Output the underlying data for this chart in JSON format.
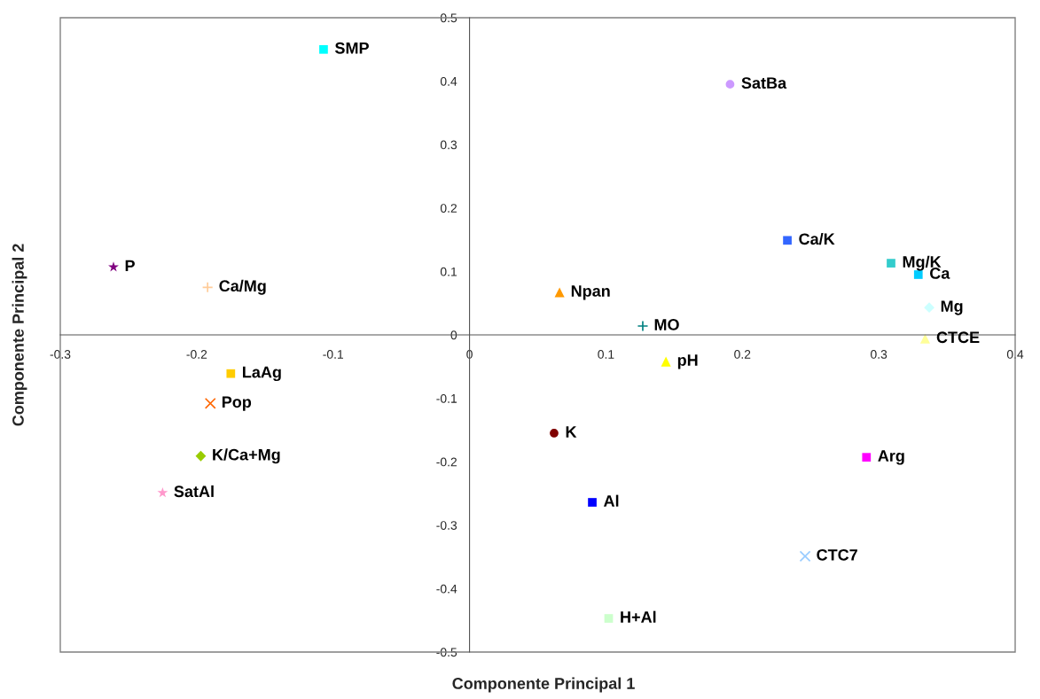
{
  "chart_data": {
    "type": "scatter",
    "xlabel": "Componente Principal 1",
    "ylabel": "Componente Principal 2",
    "xlim": [
      -0.3,
      0.4
    ],
    "ylim": [
      -0.5,
      0.5
    ],
    "xticks": [
      -0.3,
      -0.2,
      -0.1,
      0,
      0.1,
      0.2,
      0.3,
      0.4
    ],
    "yticks": [
      -0.5,
      -0.4,
      -0.3,
      -0.2,
      -0.1,
      0,
      0.1,
      0.2,
      0.3,
      0.4,
      0.5
    ],
    "grid": false,
    "series": [
      {
        "name": "SMP",
        "color": "#00ffff",
        "marker": "square",
        "x": [
          -0.107
        ],
        "values": [
          0.45
        ]
      },
      {
        "name": "SatBa",
        "color": "#cc99ff",
        "marker": "circle",
        "x": [
          0.191
        ],
        "values": [
          0.395
        ]
      },
      {
        "name": "P",
        "color": "#800080",
        "marker": "star",
        "x": [
          -0.261
        ],
        "values": [
          0.107
        ]
      },
      {
        "name": "Ca/Mg",
        "color": "#ffcc99",
        "marker": "plus",
        "x": [
          -0.192
        ],
        "values": [
          0.075
        ]
      },
      {
        "name": "Ca/K",
        "color": "#3366ff",
        "marker": "square",
        "x": [
          0.233
        ],
        "values": [
          0.149
        ]
      },
      {
        "name": "Mg/K",
        "color": "#33cccc",
        "marker": "square",
        "x": [
          0.309
        ],
        "values": [
          0.113
        ]
      },
      {
        "name": "Ca",
        "color": "#00ccff",
        "marker": "square",
        "x": [
          0.329
        ],
        "values": [
          0.095
        ]
      },
      {
        "name": "Mg",
        "color": "#ccffff",
        "marker": "diamond",
        "x": [
          0.337
        ],
        "values": [
          0.043
        ]
      },
      {
        "name": "CTCE",
        "color": "#ffff99",
        "marker": "triangle",
        "x": [
          0.334
        ],
        "values": [
          -0.006
        ]
      },
      {
        "name": "Npan",
        "color": "#ff9900",
        "marker": "triangle",
        "x": [
          0.066
        ],
        "values": [
          0.067
        ]
      },
      {
        "name": "MO",
        "color": "#008080",
        "marker": "plus",
        "x": [
          0.127
        ],
        "values": [
          0.014
        ]
      },
      {
        "name": "pH",
        "color": "#ffff00",
        "marker": "triangle",
        "x": [
          0.144
        ],
        "values": [
          -0.042
        ]
      },
      {
        "name": "LaAg",
        "color": "#ffcc00",
        "marker": "square",
        "x": [
          -0.175
        ],
        "values": [
          -0.061
        ]
      },
      {
        "name": "Pop",
        "color": "#ff6600",
        "marker": "cross",
        "x": [
          -0.19
        ],
        "values": [
          -0.108
        ]
      },
      {
        "name": "K/Ca+Mg",
        "color": "#99cc00",
        "marker": "diamond",
        "x": [
          -0.197
        ],
        "values": [
          -0.191
        ]
      },
      {
        "name": "SatAl",
        "color": "#ff99cc",
        "marker": "star",
        "x": [
          -0.225
        ],
        "values": [
          -0.249
        ]
      },
      {
        "name": "K",
        "color": "#800000",
        "marker": "circle",
        "x": [
          0.062
        ],
        "values": [
          -0.155
        ]
      },
      {
        "name": "Arg",
        "color": "#ff00ff",
        "marker": "square",
        "x": [
          0.291
        ],
        "values": [
          -0.193
        ]
      },
      {
        "name": "Al",
        "color": "#0000ff",
        "marker": "square",
        "x": [
          0.09
        ],
        "values": [
          -0.264
        ]
      },
      {
        "name": "CTC7",
        "color": "#99ccff",
        "marker": "cross",
        "x": [
          0.246
        ],
        "values": [
          -0.349
        ]
      },
      {
        "name": "H+Al",
        "color": "#ccffcc",
        "marker": "square",
        "x": [
          0.102
        ],
        "values": [
          -0.447
        ]
      }
    ]
  }
}
